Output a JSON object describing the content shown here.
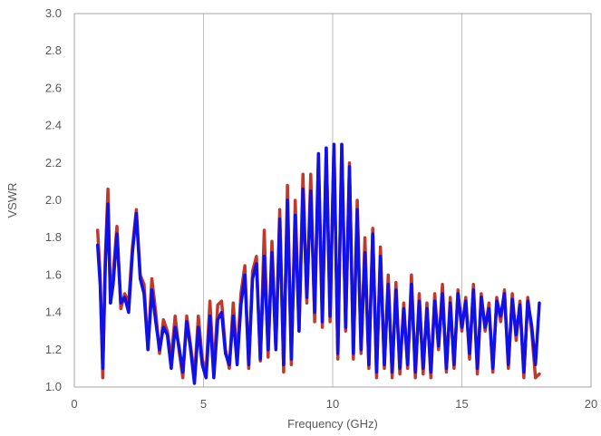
{
  "chart_data": {
    "type": "line",
    "xlabel": "Frequency (GHz)",
    "ylabel": "VSWR",
    "xlim": [
      0,
      20
    ],
    "ylim": [
      1.0,
      3.0
    ],
    "x_ticks": [
      "0",
      "5",
      "10",
      "15",
      "20"
    ],
    "y_ticks": [
      "1.0",
      "1.2",
      "1.4",
      "1.6",
      "1.8",
      "2.0",
      "2.2",
      "2.4",
      "2.6",
      "2.8",
      "3.0"
    ],
    "grid": "vertical",
    "series": [
      {
        "color": "#C0392B",
        "x": [
          0.9,
          1.0,
          1.1,
          1.2,
          1.3,
          1.4,
          1.5,
          1.65,
          1.8,
          1.95,
          2.1,
          2.25,
          2.4,
          2.55,
          2.7,
          2.85,
          3.0,
          3.15,
          3.3,
          3.45,
          3.6,
          3.75,
          3.9,
          4.05,
          4.2,
          4.35,
          4.5,
          4.65,
          4.8,
          4.95,
          5.1,
          5.25,
          5.4,
          5.55,
          5.7,
          5.85,
          6.0,
          6.15,
          6.3,
          6.45,
          6.6,
          6.75,
          6.9,
          7.05,
          7.2,
          7.35,
          7.5,
          7.65,
          7.8,
          7.95,
          8.1,
          8.25,
          8.4,
          8.55,
          8.7,
          8.85,
          9.0,
          9.15,
          9.3,
          9.45,
          9.6,
          9.75,
          9.9,
          10.05,
          10.2,
          10.35,
          10.5,
          10.65,
          10.8,
          10.95,
          11.1,
          11.25,
          11.4,
          11.55,
          11.7,
          11.85,
          12.0,
          12.15,
          12.3,
          12.45,
          12.6,
          12.75,
          12.9,
          13.05,
          13.2,
          13.35,
          13.5,
          13.65,
          13.8,
          13.95,
          14.1,
          14.25,
          14.4,
          14.55,
          14.7,
          14.85,
          15.0,
          15.15,
          15.3,
          15.45,
          15.6,
          15.75,
          15.9,
          16.05,
          16.2,
          16.35,
          16.5,
          16.65,
          16.8,
          16.95,
          17.1,
          17.25,
          17.4,
          17.55,
          17.7,
          17.85,
          18.0
        ],
        "y": [
          1.84,
          1.6,
          1.05,
          1.7,
          2.06,
          1.45,
          1.6,
          1.86,
          1.42,
          1.5,
          1.45,
          1.75,
          1.95,
          1.6,
          1.55,
          1.2,
          1.58,
          1.4,
          1.18,
          1.36,
          1.3,
          1.15,
          1.38,
          1.2,
          1.05,
          1.38,
          1.22,
          1.05,
          1.38,
          1.15,
          1.08,
          1.46,
          1.08,
          1.44,
          1.46,
          1.2,
          1.1,
          1.45,
          1.15,
          1.5,
          1.65,
          1.1,
          1.62,
          1.7,
          1.14,
          1.84,
          1.16,
          1.78,
          1.22,
          1.95,
          1.08,
          2.08,
          1.12,
          2.0,
          1.3,
          2.14,
          1.45,
          2.14,
          1.35,
          2.2,
          1.32,
          2.28,
          1.35,
          2.3,
          1.15,
          2.3,
          1.3,
          2.2,
          1.15,
          2.0,
          1.18,
          1.8,
          1.1,
          1.85,
          1.05,
          1.75,
          1.1,
          1.6,
          1.05,
          1.56,
          1.07,
          1.45,
          1.1,
          1.6,
          1.05,
          1.5,
          1.07,
          1.45,
          1.05,
          1.5,
          1.2,
          1.55,
          1.08,
          1.48,
          1.1,
          1.52,
          1.3,
          1.48,
          1.15,
          1.55,
          1.07,
          1.5,
          1.3,
          1.45,
          1.08,
          1.48,
          1.35,
          1.52,
          1.1,
          1.5,
          1.25,
          1.46,
          1.05,
          1.48,
          1.3,
          1.05,
          1.07
        ]
      },
      {
        "color": "#1010E8",
        "x": [
          0.9,
          1.0,
          1.1,
          1.2,
          1.3,
          1.4,
          1.5,
          1.65,
          1.8,
          1.95,
          2.1,
          2.25,
          2.4,
          2.55,
          2.7,
          2.85,
          3.0,
          3.15,
          3.3,
          3.45,
          3.6,
          3.75,
          3.9,
          4.05,
          4.2,
          4.35,
          4.5,
          4.65,
          4.8,
          4.95,
          5.1,
          5.25,
          5.4,
          5.55,
          5.7,
          5.85,
          6.0,
          6.15,
          6.3,
          6.45,
          6.6,
          6.75,
          6.9,
          7.05,
          7.2,
          7.35,
          7.5,
          7.65,
          7.8,
          7.95,
          8.1,
          8.25,
          8.4,
          8.55,
          8.7,
          8.85,
          9.0,
          9.15,
          9.3,
          9.45,
          9.6,
          9.75,
          9.9,
          10.05,
          10.2,
          10.35,
          10.5,
          10.65,
          10.8,
          10.95,
          11.1,
          11.25,
          11.4,
          11.55,
          11.7,
          11.85,
          12.0,
          12.15,
          12.3,
          12.45,
          12.6,
          12.75,
          12.9,
          13.05,
          13.2,
          13.35,
          13.5,
          13.65,
          13.8,
          13.95,
          14.1,
          14.25,
          14.4,
          14.55,
          14.7,
          14.85,
          15.0,
          15.15,
          15.3,
          15.45,
          15.6,
          15.75,
          15.9,
          16.05,
          16.2,
          16.35,
          16.5,
          16.65,
          16.8,
          16.95,
          17.1,
          17.25,
          17.4,
          17.55,
          17.7,
          17.85,
          18.0
        ],
        "y": [
          1.76,
          1.55,
          1.1,
          1.65,
          1.98,
          1.45,
          1.55,
          1.82,
          1.45,
          1.48,
          1.4,
          1.72,
          1.93,
          1.58,
          1.5,
          1.2,
          1.52,
          1.35,
          1.2,
          1.32,
          1.28,
          1.1,
          1.32,
          1.22,
          1.08,
          1.35,
          1.2,
          1.02,
          1.32,
          1.12,
          1.05,
          1.38,
          1.05,
          1.36,
          1.4,
          1.18,
          1.12,
          1.38,
          1.12,
          1.44,
          1.6,
          1.12,
          1.58,
          1.66,
          1.15,
          1.7,
          1.2,
          1.72,
          1.2,
          1.9,
          1.12,
          2.0,
          1.15,
          1.92,
          1.3,
          2.06,
          1.48,
          2.05,
          1.4,
          2.25,
          1.35,
          2.28,
          1.38,
          2.3,
          1.18,
          2.3,
          1.32,
          2.18,
          1.18,
          1.95,
          1.2,
          1.72,
          1.12,
          1.82,
          1.08,
          1.7,
          1.12,
          1.55,
          1.08,
          1.52,
          1.1,
          1.42,
          1.12,
          1.55,
          1.08,
          1.46,
          1.1,
          1.42,
          1.08,
          1.46,
          1.22,
          1.5,
          1.1,
          1.45,
          1.12,
          1.5,
          1.32,
          1.46,
          1.18,
          1.52,
          1.1,
          1.48,
          1.32,
          1.42,
          1.1,
          1.46,
          1.38,
          1.5,
          1.12,
          1.47,
          1.28,
          1.44,
          1.08,
          1.46,
          1.33,
          1.12,
          1.45
        ]
      }
    ]
  }
}
